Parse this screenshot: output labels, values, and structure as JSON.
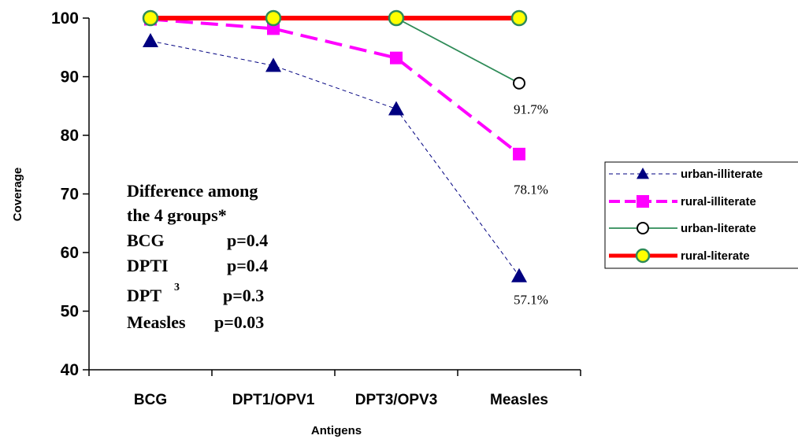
{
  "chart_data": {
    "type": "line",
    "xlabel": "Antigens",
    "ylabel": "Coverage",
    "categories": [
      "BCG",
      "DPT1/OPV1",
      "DPT3/OPV3",
      "Measles"
    ],
    "ylim": [
      40,
      100
    ],
    "yticks": [
      40,
      50,
      60,
      70,
      80,
      90,
      100
    ],
    "grid": false,
    "legend_position": "right",
    "series": [
      {
        "name": "urban-illiterate",
        "values": [
          96.1,
          91.9,
          84.5,
          56.0
        ],
        "color": "#000080",
        "marker": "triangle",
        "line": "thin-dashed"
      },
      {
        "name": "rural-illiterate",
        "values": [
          99.8,
          98.2,
          93.2,
          76.8
        ],
        "color": "#FF00FF",
        "marker": "square",
        "line": "thick-dashed"
      },
      {
        "name": "urban-literate",
        "values": [
          100,
          100,
          100,
          88.9
        ],
        "color": "#2E8B57",
        "marker": "open-circle",
        "line": "solid"
      },
      {
        "name": "rural-literate",
        "values": [
          100,
          100,
          100,
          100
        ],
        "color": "#FF0000",
        "marker": "yellow-circle",
        "line": "thick-solid"
      }
    ],
    "data_labels": [
      {
        "category": "Measles",
        "text": "91.7%",
        "near_value": 84.5
      },
      {
        "category": "Measles",
        "text": "78.1%",
        "near_value": 70.8
      },
      {
        "category": "Measles",
        "text": "57.1%",
        "near_value": 52.0
      }
    ],
    "annotation": {
      "title_lines": [
        "Difference among",
        "the 4 groups*"
      ],
      "rows": [
        {
          "name": "BCG",
          "sup": "",
          "p": "p=0.4"
        },
        {
          "name": "DPTI",
          "sup": "",
          "p": "p=0.4"
        },
        {
          "name": "DPT",
          "sup": "3",
          "p": "p=0.3"
        },
        {
          "name": "Measles",
          "sup": "",
          "p": "p=0.03"
        }
      ]
    }
  }
}
